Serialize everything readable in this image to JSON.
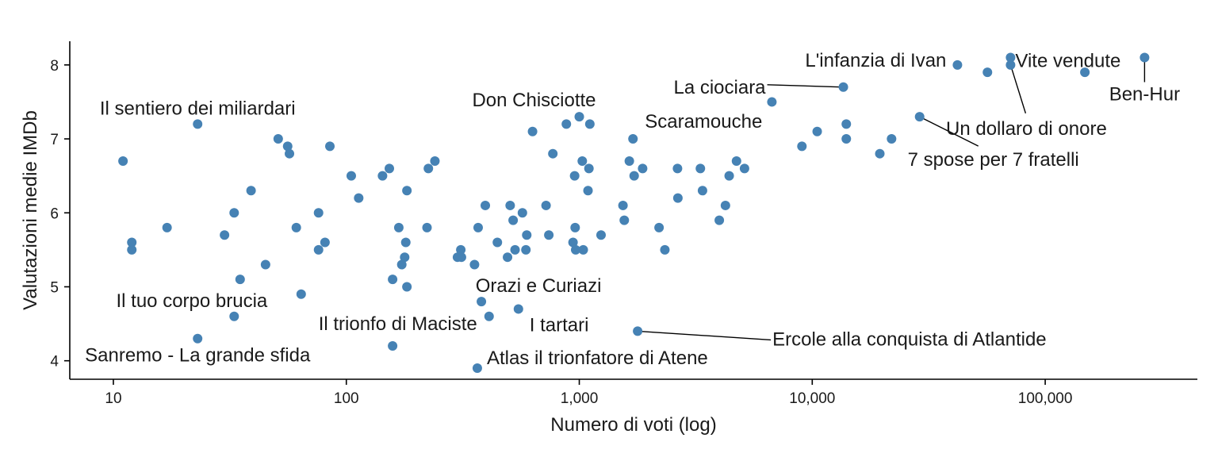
{
  "chart_data": {
    "type": "scatter",
    "title": "",
    "xlabel": "Numero di voti (log)",
    "ylabel": "Valutazioni medie IMDb",
    "x_scale": "log10",
    "xlim": [
      6.5,
      450000
    ],
    "ylim": [
      3.75,
      8.32
    ],
    "x_ticks": [
      {
        "value": 10,
        "label": "10"
      },
      {
        "value": 100,
        "label": "100"
      },
      {
        "value": 1000,
        "label": "1,000"
      },
      {
        "value": 10000,
        "label": "10,000"
      },
      {
        "value": 100000,
        "label": "100,000"
      }
    ],
    "y_ticks": [
      {
        "value": 4,
        "label": "4"
      },
      {
        "value": 5,
        "label": "5"
      },
      {
        "value": 6,
        "label": "6"
      },
      {
        "value": 7,
        "label": "7"
      },
      {
        "value": 8,
        "label": "8"
      }
    ],
    "grid": false,
    "point_color": "#4682b4",
    "points": [
      {
        "x": 11,
        "y": 6.7
      },
      {
        "x": 12,
        "y": 5.6
      },
      {
        "x": 12,
        "y": 5.5
      },
      {
        "x": 17,
        "y": 5.8
      },
      {
        "x": 23,
        "y": 7.2
      },
      {
        "x": 23,
        "y": 4.3
      },
      {
        "x": 30,
        "y": 5.7
      },
      {
        "x": 33,
        "y": 6.0
      },
      {
        "x": 33,
        "y": 4.6
      },
      {
        "x": 35,
        "y": 5.1
      },
      {
        "x": 39,
        "y": 6.3
      },
      {
        "x": 45,
        "y": 5.3
      },
      {
        "x": 51,
        "y": 7.0
      },
      {
        "x": 56,
        "y": 6.9
      },
      {
        "x": 57,
        "y": 6.8
      },
      {
        "x": 61,
        "y": 5.8
      },
      {
        "x": 64,
        "y": 4.9
      },
      {
        "x": 76,
        "y": 6.0
      },
      {
        "x": 76,
        "y": 5.5
      },
      {
        "x": 81,
        "y": 5.6
      },
      {
        "x": 85,
        "y": 6.9
      },
      {
        "x": 105,
        "y": 6.5
      },
      {
        "x": 113,
        "y": 6.2
      },
      {
        "x": 143,
        "y": 6.5
      },
      {
        "x": 153,
        "y": 6.6
      },
      {
        "x": 158,
        "y": 5.1
      },
      {
        "x": 158,
        "y": 4.2
      },
      {
        "x": 168,
        "y": 5.8
      },
      {
        "x": 173,
        "y": 5.3
      },
      {
        "x": 178,
        "y": 5.4
      },
      {
        "x": 180,
        "y": 5.6
      },
      {
        "x": 182,
        "y": 6.3
      },
      {
        "x": 182,
        "y": 5.0
      },
      {
        "x": 225,
        "y": 6.6
      },
      {
        "x": 222,
        "y": 5.8
      },
      {
        "x": 240,
        "y": 6.7
      },
      {
        "x": 300,
        "y": 5.4
      },
      {
        "x": 310,
        "y": 5.5
      },
      {
        "x": 312,
        "y": 5.4
      },
      {
        "x": 355,
        "y": 5.3
      },
      {
        "x": 368,
        "y": 5.8
      },
      {
        "x": 365,
        "y": 3.9
      },
      {
        "x": 380,
        "y": 4.8
      },
      {
        "x": 395,
        "y": 6.1
      },
      {
        "x": 410,
        "y": 4.6
      },
      {
        "x": 445,
        "y": 5.6
      },
      {
        "x": 492,
        "y": 5.4
      },
      {
        "x": 505,
        "y": 6.1
      },
      {
        "x": 520,
        "y": 5.9
      },
      {
        "x": 530,
        "y": 5.5
      },
      {
        "x": 548,
        "y": 4.7
      },
      {
        "x": 570,
        "y": 6.0
      },
      {
        "x": 595,
        "y": 5.7
      },
      {
        "x": 590,
        "y": 5.5
      },
      {
        "x": 630,
        "y": 7.1
      },
      {
        "x": 720,
        "y": 6.1
      },
      {
        "x": 740,
        "y": 5.7
      },
      {
        "x": 770,
        "y": 6.8
      },
      {
        "x": 880,
        "y": 7.2
      },
      {
        "x": 940,
        "y": 5.6
      },
      {
        "x": 955,
        "y": 6.5
      },
      {
        "x": 960,
        "y": 5.8
      },
      {
        "x": 965,
        "y": 5.5
      },
      {
        "x": 1000,
        "y": 7.3
      },
      {
        "x": 1030,
        "y": 6.7
      },
      {
        "x": 1040,
        "y": 5.5
      },
      {
        "x": 1090,
        "y": 6.3
      },
      {
        "x": 1110,
        "y": 7.2
      },
      {
        "x": 1100,
        "y": 6.6
      },
      {
        "x": 1240,
        "y": 5.7
      },
      {
        "x": 1540,
        "y": 6.1
      },
      {
        "x": 1560,
        "y": 5.9
      },
      {
        "x": 1640,
        "y": 6.7
      },
      {
        "x": 1700,
        "y": 7.0
      },
      {
        "x": 1720,
        "y": 6.5
      },
      {
        "x": 1780,
        "y": 4.4
      },
      {
        "x": 1870,
        "y": 6.6
      },
      {
        "x": 2200,
        "y": 5.8
      },
      {
        "x": 2330,
        "y": 5.5
      },
      {
        "x": 2640,
        "y": 6.6
      },
      {
        "x": 2650,
        "y": 6.2
      },
      {
        "x": 3310,
        "y": 6.6
      },
      {
        "x": 3380,
        "y": 6.3
      },
      {
        "x": 3990,
        "y": 5.9
      },
      {
        "x": 4240,
        "y": 6.1
      },
      {
        "x": 4400,
        "y": 6.5
      },
      {
        "x": 4730,
        "y": 6.7
      },
      {
        "x": 5120,
        "y": 6.6
      },
      {
        "x": 6710,
        "y": 7.5
      },
      {
        "x": 9030,
        "y": 6.9
      },
      {
        "x": 10500,
        "y": 7.1
      },
      {
        "x": 13600,
        "y": 7.7
      },
      {
        "x": 14000,
        "y": 7.2
      },
      {
        "x": 14000,
        "y": 7.0
      },
      {
        "x": 19500,
        "y": 6.8
      },
      {
        "x": 21900,
        "y": 7.0
      },
      {
        "x": 28900,
        "y": 7.3
      },
      {
        "x": 42000,
        "y": 8.0
      },
      {
        "x": 56500,
        "y": 7.9
      },
      {
        "x": 71000,
        "y": 8.1
      },
      {
        "x": 71000,
        "y": 8.0
      },
      {
        "x": 148000,
        "y": 7.9
      },
      {
        "x": 267000,
        "y": 8.1
      }
    ],
    "annotations": [
      {
        "text": "Il sentiero dei miliardari",
        "x": 23,
        "y": 7.2,
        "anchor": "middle",
        "dx": 0,
        "dy": -20,
        "leader": false
      },
      {
        "text": "Il tuo corpo brucia",
        "x": 33,
        "y": 4.6,
        "anchor": "end",
        "dx": 42,
        "dy": -20,
        "leader": false
      },
      {
        "text": "Sanremo - La grande sfida",
        "x": 23,
        "y": 4.3,
        "anchor": "middle",
        "dx": 0,
        "dy": 21,
        "leader": false
      },
      {
        "text": "Il trionfo di Maciste",
        "x": 410,
        "y": 4.6,
        "anchor": "end",
        "dx": -15,
        "dy": 9,
        "leader": false
      },
      {
        "text": "Orazi e Curiazi",
        "x": 380,
        "y": 4.8,
        "anchor": "middle",
        "dx": 72,
        "dy": -20,
        "leader": false
      },
      {
        "text": "I tartari",
        "x": 548,
        "y": 4.7,
        "anchor": "start",
        "dx": 14,
        "dy": 20,
        "leader": false
      },
      {
        "text": "Atlas il trionfatore di Atene",
        "x": 365,
        "y": 3.9,
        "anchor": "start",
        "dx": 12,
        "dy": -13,
        "leader": false
      },
      {
        "text": "Don Chisciotte",
        "x": 1000,
        "y": 7.3,
        "anchor": "end",
        "dx": 21,
        "dy": -21,
        "leader": false
      },
      {
        "text": "Scaramouche",
        "x": 1700,
        "y": 7.0,
        "anchor": "start",
        "dx": 15,
        "dy": -22,
        "leader": false
      },
      {
        "text": "Ercole alla conquista di Atlantide",
        "x": 1780,
        "y": 4.4,
        "anchor": "start",
        "dx": 170,
        "dy": 10,
        "leader": true,
        "lead_dx": 168,
        "lead_dy": 11
      },
      {
        "text": "La ciociara",
        "x": 13600,
        "y": 7.7,
        "anchor": "end",
        "dx": -98,
        "dy": 0,
        "leader": true,
        "lead_dx": -96,
        "lead_dy": -3
      },
      {
        "text": "L'infanzia di Ivan",
        "x": 42000,
        "y": 8.0,
        "anchor": "end",
        "dx": -14,
        "dy": -6,
        "leader": false
      },
      {
        "text": "Un dollaro di onore",
        "x": 71000,
        "y": 8.0,
        "anchor": "middle",
        "dx": 20,
        "dy": 80,
        "leader": true,
        "lead_dx": 19,
        "lead_dy": 61
      },
      {
        "text": "7 spose per 7 fratelli",
        "x": 28900,
        "y": 7.3,
        "anchor": "middle",
        "dx": 93,
        "dy": 54,
        "leader": true,
        "lead_dx": 74,
        "lead_dy": 37
      },
      {
        "text": "Vite vendute",
        "x": 71000,
        "y": 8.1,
        "anchor": "start",
        "dx": 6,
        "dy": 4,
        "leader": false
      },
      {
        "text": "Ben-Hur",
        "x": 267000,
        "y": 8.1,
        "anchor": "middle",
        "dx": 0,
        "dy": 46,
        "leader": true,
        "lead_dx": 0,
        "lead_dy": 31
      }
    ]
  }
}
